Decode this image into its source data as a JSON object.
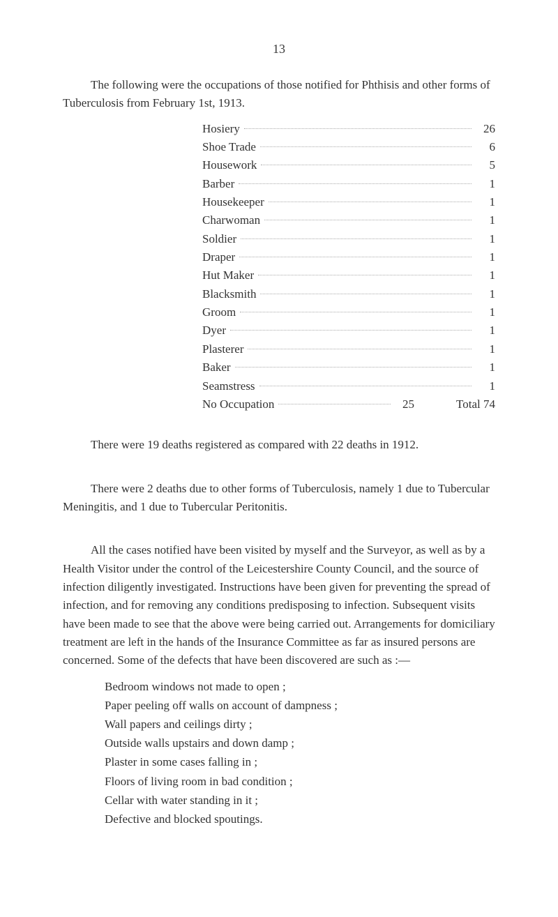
{
  "page_number_label": "13",
  "intro_para": "The following were the occupations of those notified for Phthisis and other forms of Tuberculosis from February 1st, 1913.",
  "occupations": [
    {
      "label": "Hosiery",
      "count": "26"
    },
    {
      "label": "Shoe Trade",
      "count": "6"
    },
    {
      "label": "Housework",
      "count": "5"
    },
    {
      "label": "Barber",
      "count": "1"
    },
    {
      "label": "Housekeeper",
      "count": "1"
    },
    {
      "label": "Charwoman",
      "count": "1"
    },
    {
      "label": "Soldier",
      "count": "1"
    },
    {
      "label": "Draper",
      "count": "1"
    },
    {
      "label": "Hut Maker",
      "count": "1"
    },
    {
      "label": "Blacksmith",
      "count": "1"
    },
    {
      "label": "Groom",
      "count": "1"
    },
    {
      "label": "Dyer",
      "count": "1"
    },
    {
      "label": "Plasterer",
      "count": "1"
    },
    {
      "label": "Baker",
      "count": "1"
    },
    {
      "label": "Seamstress",
      "count": "1"
    },
    {
      "label": "No Occupation",
      "count": "25"
    }
  ],
  "total_label": "Total 74",
  "para_deaths_registered": "There were 19 deaths registered as compared with 22 deaths in 1912.",
  "para_other_forms": "There were 2 deaths due to other forms of Tuberculosis, namely 1 due to Tubercular Meningitis, and 1 due to Tubercular Peritonitis.",
  "para_cases": "All the cases notified have been visited by myself and the Surveyor, as well as by a Health Visitor under the control of the Leicestershire County Council, and the source of infection diligently investigated. Instructions have been given for preventing the spread of infection, and for removing any conditions predisposing to infection. Subsequent visits have been made to see that the above were being carried out. Arrangements for domiciliary treatment are left in the hands of the Insurance Committee as far as insured persons are concerned. Some of the defects that have been discovered are such as :—",
  "defects": [
    "Bedroom windows not made to open ;",
    "Paper peeling off walls on account of dampness ;",
    "Wall papers and ceilings dirty ;",
    "Outside walls upstairs and down damp ;",
    "Plaster in some cases falling in ;",
    "Floors of living room in bad condition ;",
    "Cellar with water standing in it ;",
    "Defective and blocked spoutings."
  ]
}
